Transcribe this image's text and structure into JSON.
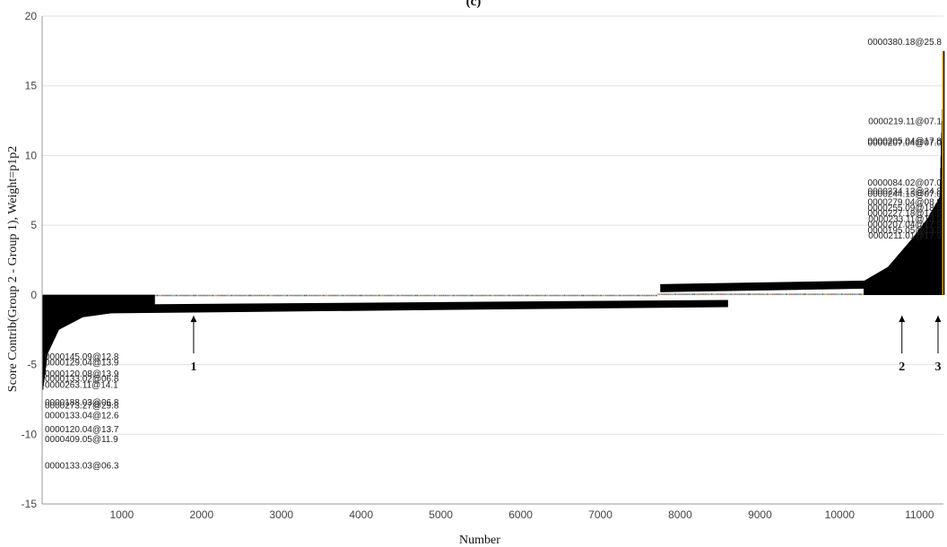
{
  "chart_data": {
    "type": "bar",
    "panel_label": "(c)",
    "xlabel": "Number",
    "ylabel": "Score Contrib(Group 2 - Group 1), Weight=p1p2",
    "xlim": [
      1,
      11300
    ],
    "ylim": [
      -15,
      20
    ],
    "xticks": [
      1000,
      2000,
      3000,
      4000,
      5000,
      6000,
      7000,
      8000,
      9000,
      10000,
      11000
    ],
    "yticks": [
      -15,
      -10,
      -5,
      0,
      5,
      10,
      15,
      20
    ],
    "grid": "horizontal",
    "colors": {
      "bar_cluster": "#000000",
      "grid": "#e2e2e2",
      "accent_bar": "#d4a017"
    },
    "series_profile": {
      "negative_tail": [
        [
          1,
          -6.8
        ],
        [
          60,
          -4.2
        ],
        [
          200,
          -2.5
        ],
        [
          500,
          -1.6
        ],
        [
          1000,
          -1.2
        ],
        [
          1400,
          -1.05
        ]
      ],
      "flat_band_1": {
        "x": [
          1,
          8600
        ],
        "y": [
          -1.05,
          -0.62
        ]
      },
      "flat_band_2": {
        "x": [
          7750,
          11300
        ],
        "y": [
          0.45,
          0.8
        ]
      },
      "positive_tail": [
        [
          10300,
          1.0
        ],
        [
          10600,
          2.0
        ],
        [
          10900,
          4.0
        ],
        [
          11100,
          5.5
        ],
        [
          11250,
          7.0
        ],
        [
          11300,
          17.5
        ]
      ]
    },
    "annotations": [
      {
        "text": "0000380.18@25.8",
        "x": 11300,
        "y": 18.2
      },
      {
        "text": "0000219.11@07.1",
        "x": 11300,
        "y": 12.5
      },
      {
        "text": "0000205.04@17.8",
        "x": 11300,
        "y": 11.1
      },
      {
        "text": "0000207.04@07.0",
        "x": 11300,
        "y": 10.95
      },
      {
        "text": "0000084.02@07.0",
        "x": 11300,
        "y": 8.1
      },
      {
        "text": "0000234.12@24.8",
        "x": 11300,
        "y": 7.5
      },
      {
        "text": "0000244.13@07.0",
        "x": 11300,
        "y": 7.3
      },
      {
        "text": "0000279.04@08.8",
        "x": 11300,
        "y": 6.7
      },
      {
        "text": "0000255.09@18.8",
        "x": 11300,
        "y": 6.3
      },
      {
        "text": "0000227.18@14.9",
        "x": 11300,
        "y": 5.9
      },
      {
        "text": "0000233.11@13.9",
        "x": 11300,
        "y": 5.5
      },
      {
        "text": "0000207.04@17.9",
        "x": 11300,
        "y": 5.1
      },
      {
        "text": "0000195.05@13.8",
        "x": 11300,
        "y": 4.7
      },
      {
        "text": "0000211.01@17.9",
        "x": 11300,
        "y": 4.3
      },
      {
        "text": "0000145.09@12.8",
        "x": 1,
        "y": -4.4
      },
      {
        "text": "0000129.04@13.9",
        "x": 1,
        "y": -4.8
      },
      {
        "text": "0000120.08@13.9",
        "x": 1,
        "y": -5.6
      },
      {
        "text": "0000133.02@06.8",
        "x": 1,
        "y": -5.95
      },
      {
        "text": "0000263.11@14.1",
        "x": 1,
        "y": -6.4
      },
      {
        "text": "0000188.03@06.8",
        "x": 1,
        "y": -7.65
      },
      {
        "text": "0000273.27@29.8",
        "x": 1,
        "y": -7.9
      },
      {
        "text": "0000133.04@12.6",
        "x": 1,
        "y": -8.6
      },
      {
        "text": "0000120.04@13.7",
        "x": 1,
        "y": -9.6
      },
      {
        "text": "0000409.05@11.9",
        "x": 1,
        "y": -10.3
      },
      {
        "text": "0000133.03@06.3",
        "x": 1,
        "y": -12.2
      }
    ],
    "markers": [
      {
        "label": "1",
        "x": 1900
      },
      {
        "label": "2",
        "x": 10780
      },
      {
        "label": "3",
        "x": 11300
      }
    ]
  }
}
